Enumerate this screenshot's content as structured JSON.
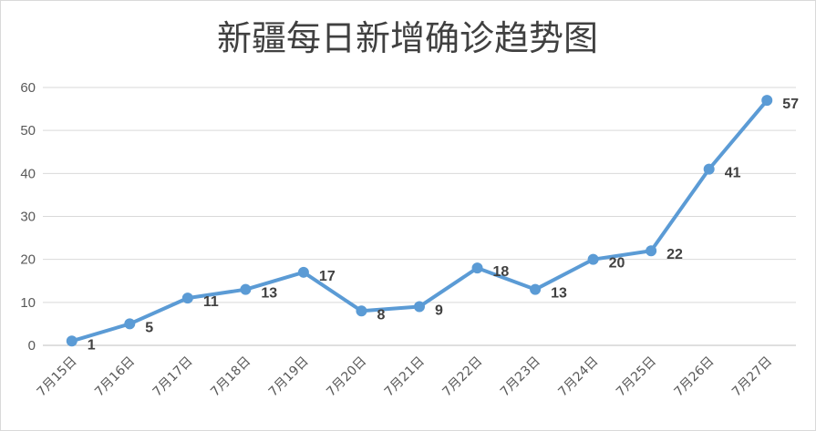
{
  "chart_data": {
    "type": "line",
    "title": "新疆每日新增确诊趋势图",
    "xlabel": "",
    "ylabel": "",
    "categories": [
      "7月15日",
      "7月16日",
      "7月17日",
      "7月18日",
      "7月19日",
      "7月20日",
      "7月21日",
      "7月22日",
      "7月23日",
      "7月24日",
      "7月25日",
      "7月26日",
      "7月27日"
    ],
    "series": [
      {
        "values": [
          1,
          5,
          11,
          13,
          17,
          8,
          9,
          18,
          13,
          20,
          22,
          41,
          57
        ],
        "color": "#5b9bd5"
      }
    ],
    "ylim": [
      0,
      60
    ],
    "yticks": [
      0,
      10,
      20,
      30,
      40,
      50,
      60
    ],
    "grid": true,
    "legend": "none",
    "data_labels": true
  }
}
